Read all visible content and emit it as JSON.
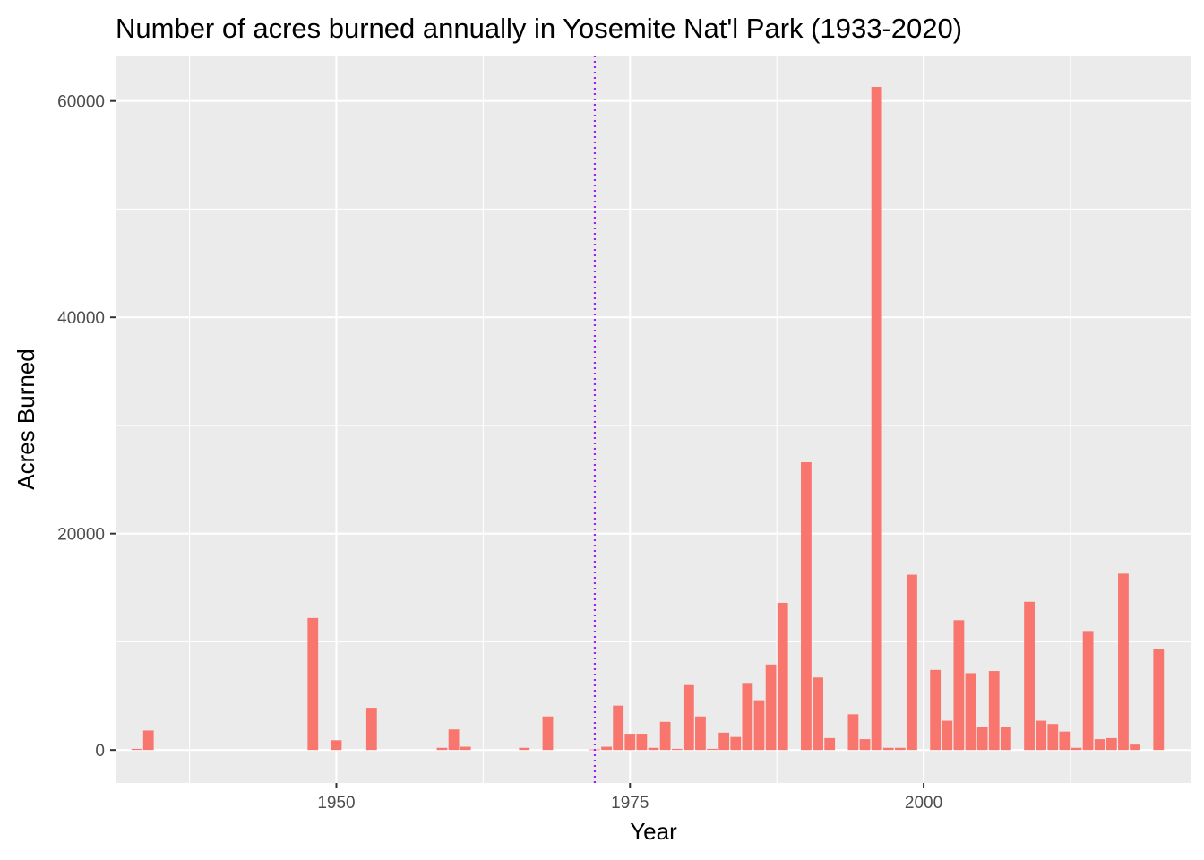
{
  "chart_data": {
    "type": "bar",
    "title": "Number of acres burned annually in Yosemite Nat'l Park (1933-2020)",
    "xlabel": "Year",
    "ylabel": "Acres Burned",
    "xlim": [
      1931.2,
      2022.8
    ],
    "ylim": [
      -3050,
      64200
    ],
    "x_ticks": [
      1950,
      1975,
      2000
    ],
    "y_ticks": [
      0,
      20000,
      40000,
      60000
    ],
    "grid": true,
    "reference_line": {
      "x": 1972,
      "color": "#a020f0",
      "style": "dotted"
    },
    "bar_color": "#f8766d",
    "x": [
      1933,
      1934,
      1948,
      1950,
      1953,
      1959,
      1960,
      1961,
      1966,
      1968,
      1972,
      1973,
      1974,
      1975,
      1976,
      1977,
      1978,
      1979,
      1980,
      1981,
      1982,
      1983,
      1984,
      1985,
      1986,
      1987,
      1988,
      1990,
      1991,
      1992,
      1994,
      1995,
      1996,
      1997,
      1998,
      1999,
      2001,
      2002,
      2003,
      2004,
      2005,
      2006,
      2007,
      2009,
      2010,
      2011,
      2012,
      2013,
      2014,
      2015,
      2016,
      2017,
      2018,
      2020
    ],
    "values": [
      100,
      1800,
      12200,
      900,
      3900,
      200,
      1900,
      300,
      200,
      3100,
      50,
      300,
      4100,
      1500,
      1500,
      200,
      2600,
      100,
      6000,
      3100,
      100,
      1600,
      1200,
      6200,
      4600,
      7900,
      13600,
      26600,
      6700,
      1100,
      3300,
      1000,
      61300,
      200,
      200,
      16200,
      7400,
      2700,
      12000,
      7100,
      2100,
      7300,
      2100,
      13700,
      2700,
      2400,
      1700,
      200,
      11000,
      1000,
      1100,
      16300,
      500,
      9300
    ]
  }
}
